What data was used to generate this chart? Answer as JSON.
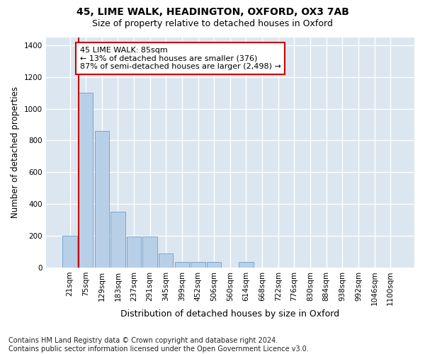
{
  "title_line1": "45, LIME WALK, HEADINGTON, OXFORD, OX3 7AB",
  "title_line2": "Size of property relative to detached houses in Oxford",
  "xlabel": "Distribution of detached houses by size in Oxford",
  "ylabel": "Number of detached properties",
  "footnote": "Contains HM Land Registry data © Crown copyright and database right 2024.\nContains public sector information licensed under the Open Government Licence v3.0.",
  "bar_labels": [
    "21sqm",
    "75sqm",
    "129sqm",
    "183sqm",
    "237sqm",
    "291sqm",
    "345sqm",
    "399sqm",
    "452sqm",
    "506sqm",
    "560sqm",
    "614sqm",
    "668sqm",
    "722sqm",
    "776sqm",
    "830sqm",
    "884sqm",
    "938sqm",
    "992sqm",
    "1046sqm",
    "1100sqm"
  ],
  "bar_values": [
    200,
    1100,
    860,
    350,
    195,
    195,
    90,
    35,
    35,
    35,
    0,
    35,
    0,
    0,
    0,
    0,
    0,
    0,
    0,
    0,
    0
  ],
  "bar_color": "#b8cfe8",
  "bar_edge_color": "#6a9fc8",
  "background_color": "#dce6f0",
  "grid_color": "#ffffff",
  "annotation_text": "45 LIME WALK: 85sqm\n← 13% of detached houses are smaller (376)\n87% of semi-detached houses are larger (2,498) →",
  "annotation_box_facecolor": "#ffffff",
  "annotation_box_edgecolor": "#cc0000",
  "vline_color": "#cc0000",
  "vline_x_index": 1,
  "ylim": [
    0,
    1450
  ],
  "yticks": [
    0,
    200,
    400,
    600,
    800,
    1000,
    1200,
    1400
  ],
  "title_fontsize": 10,
  "subtitle_fontsize": 9,
  "annotation_fontsize": 8,
  "xlabel_fontsize": 9,
  "ylabel_fontsize": 8.5,
  "tick_fontsize": 7.5,
  "footnote_fontsize": 7
}
